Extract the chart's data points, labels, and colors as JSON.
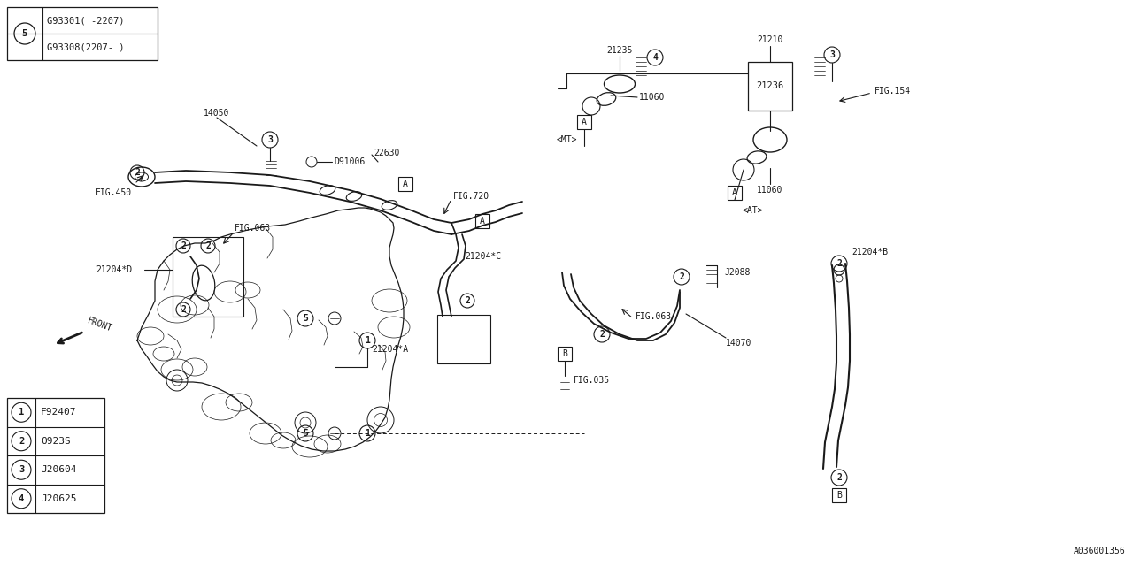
{
  "bg_color": "#ffffff",
  "line_color": "#1a1a1a",
  "text_color": "#1a1a1a",
  "fig_width": 12.8,
  "fig_height": 6.4,
  "dpi": 100,
  "part_labels": [
    {
      "num": "1",
      "code": "F92407"
    },
    {
      "num": "2",
      "code": "0923S"
    },
    {
      "num": "3",
      "code": "J20604"
    },
    {
      "num": "4",
      "code": "J20625"
    }
  ],
  "part5_label_top": "G93301（-2207）",
  "part5_label_bot": "G93308(2207-）",
  "part5_label_top2": "G93301( -2207)",
  "part5_label_bot2": "G93308(2207- )",
  "corner_code": "A036001356",
  "fs": 7.0
}
